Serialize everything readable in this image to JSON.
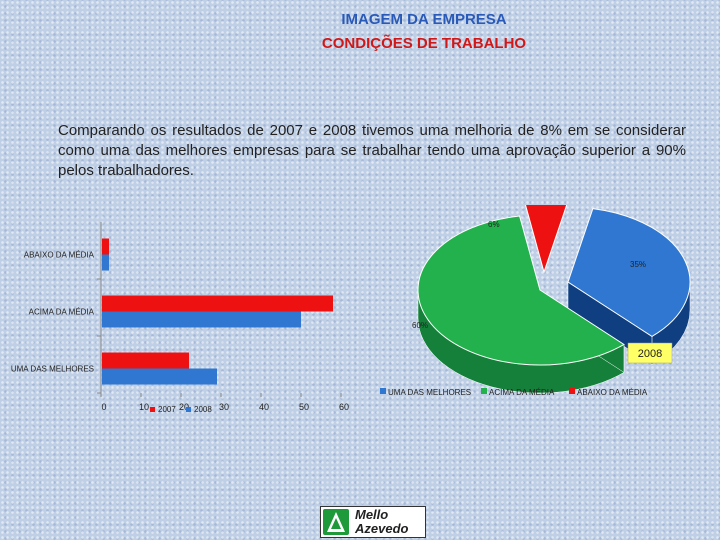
{
  "header": {
    "title": "IMAGEM DA EMPRESA",
    "subtitle": "CONDIÇÕES DE TRABALHO"
  },
  "paragraph": "Comparando os resultados de 2007 e 2008 tivemos uma melhoria de 8% em se considerar como uma das melhores empresas para se trabalhar tendo uma aprovação superior a 90% pelos trabalhadores.",
  "logo": {
    "line1": "Mello",
    "line2": "Azevedo"
  },
  "colors": {
    "red": "#ee1111",
    "blue": "#2f77d0",
    "green": "#22b14c",
    "title_blue": "#2a5ab8",
    "title_red": "#d01818"
  },
  "chart_data": [
    {
      "type": "bar",
      "orientation": "horizontal",
      "categories": [
        "ABAIXO DA MÉDIA",
        "ACIMA DA MÉDIA",
        "UMA DAS MELHORES"
      ],
      "series": [
        {
          "name": "2007",
          "color": "#2f77d0",
          "values": [
            2,
            50,
            29
          ]
        },
        {
          "name": "2008",
          "color": "#ee1111",
          "values": [
            2,
            58,
            22
          ]
        }
      ],
      "xticks": [
        0,
        10,
        20,
        30,
        40,
        50,
        60
      ],
      "xlim": [
        0,
        60
      ],
      "legend": [
        "2007",
        "2008"
      ],
      "legend_placement": "bottom"
    },
    {
      "type": "pie",
      "style": "3d",
      "title": "2008",
      "labels": [
        "UMA DAS MELHORES",
        "ACIMA DA MÉDIA",
        "ABAIXO DA MÉDIA"
      ],
      "values": [
        35,
        60,
        6
      ],
      "value_labels": [
        "35%",
        "60%",
        "6%"
      ],
      "colors": [
        "#2f77d0",
        "#22b14c",
        "#ee1111"
      ],
      "legend_placement": "bottom"
    }
  ]
}
